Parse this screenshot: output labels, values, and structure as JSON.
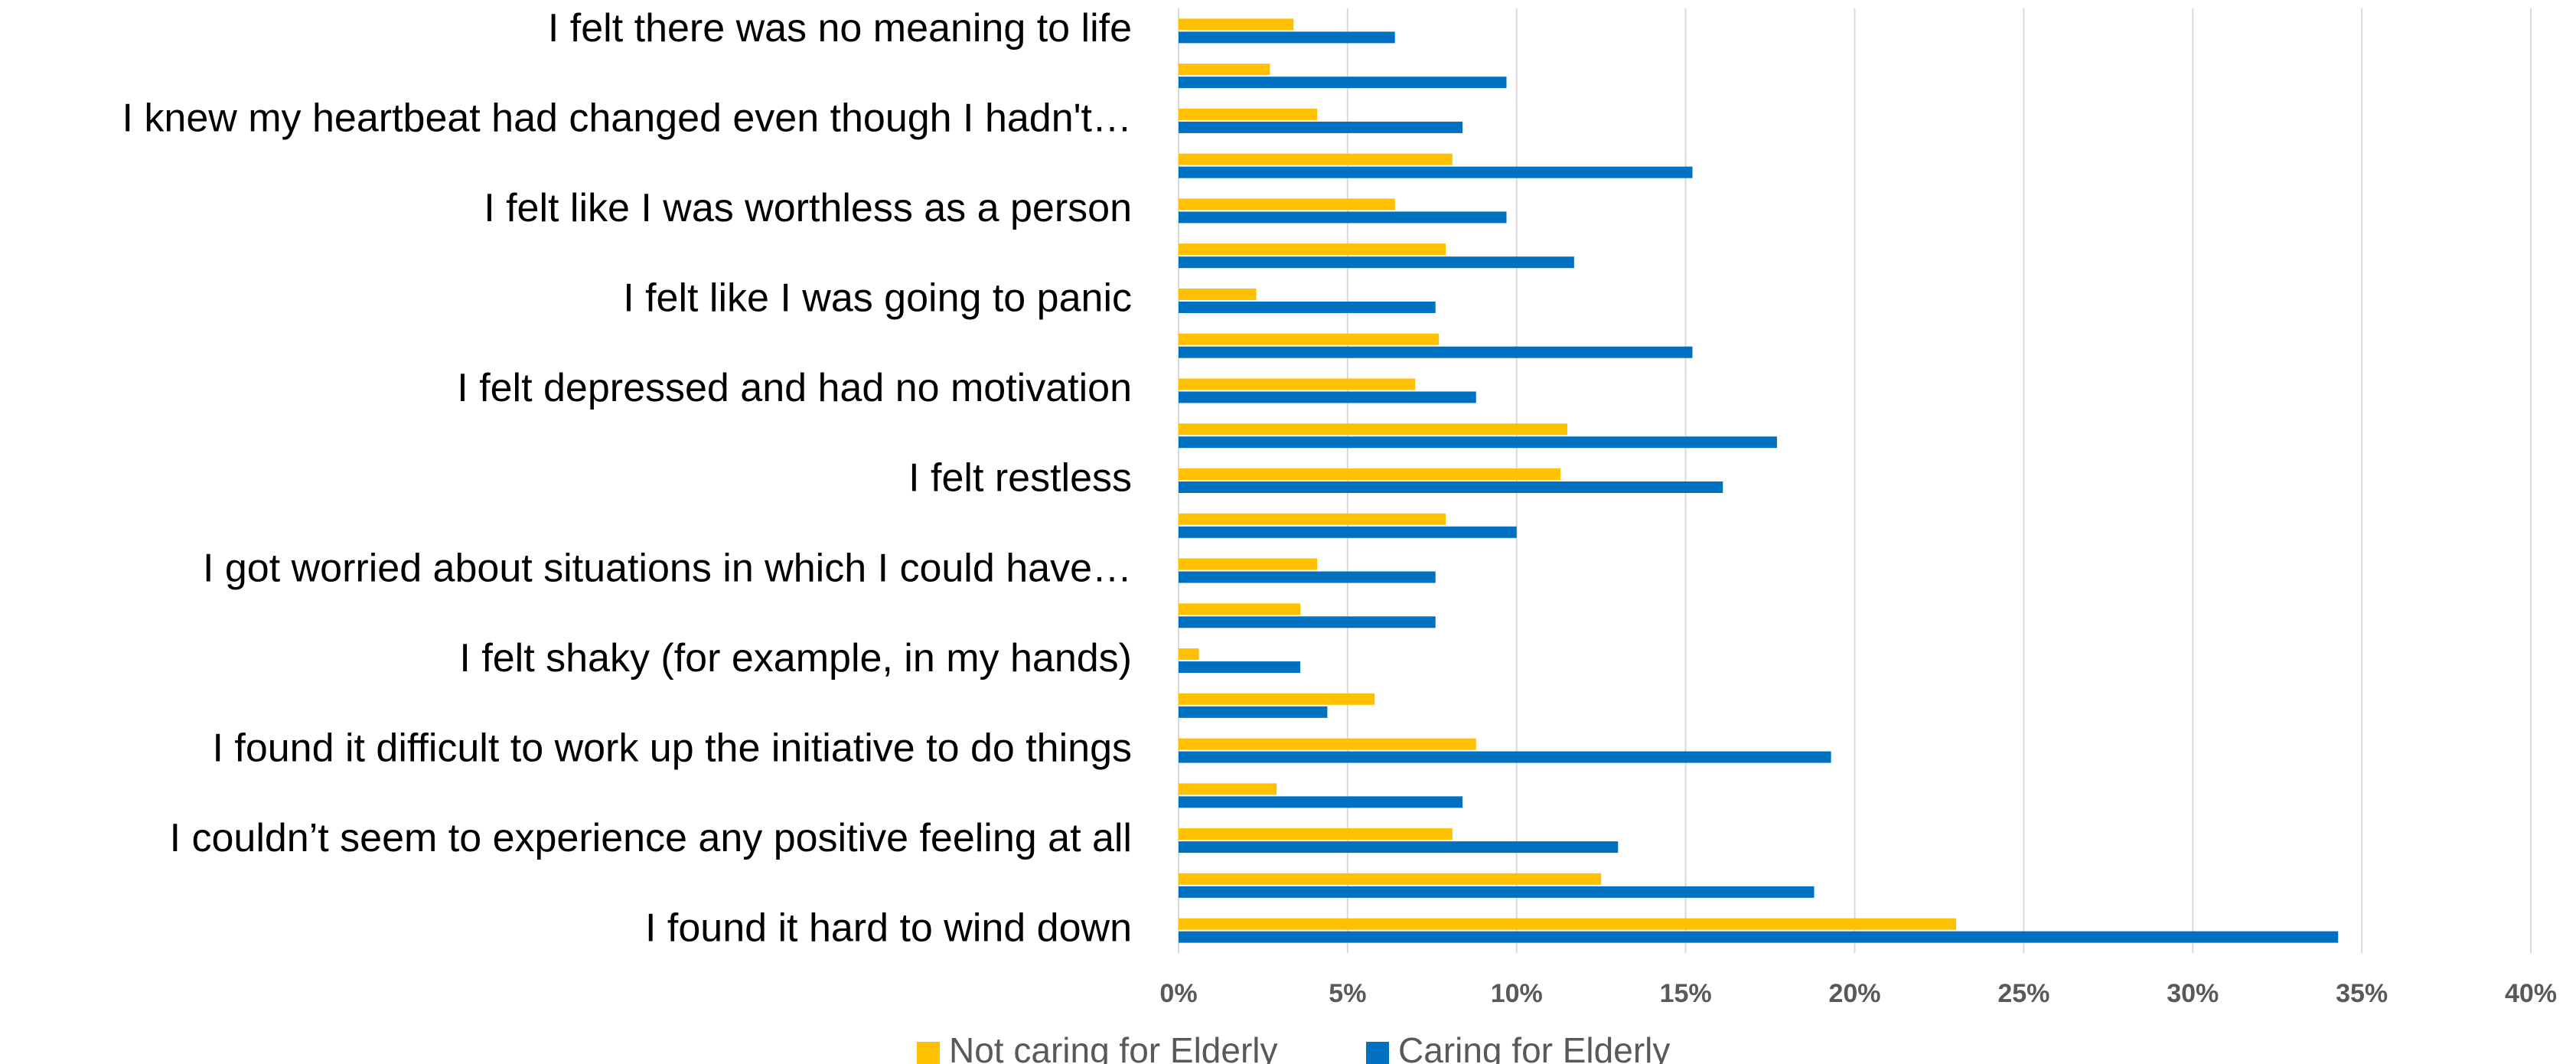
{
  "chart_data": {
    "type": "bar",
    "orientation": "horizontal",
    "categories": [
      "I felt there was no meaning to life",
      null,
      "I knew my heartbeat had changed even though I hadn't…",
      null,
      "I felt like I was worthless as a person",
      null,
      "I felt like I was going to panic",
      null,
      "I felt depressed and had no motivation",
      null,
      "I felt restless",
      null,
      "I got worried about situations in which I could have…",
      null,
      "I felt shaky (for example, in my hands)",
      null,
      "I found it difficult to work up the initiative to do things",
      null,
      "I couldn’t seem to experience any positive feeling at all",
      null,
      "I found it hard to wind down"
    ],
    "series": [
      {
        "name": "Not caring for Elderly",
        "color": "#FFC000",
        "values": [
          3.4,
          2.7,
          4.1,
          8.1,
          6.4,
          7.9,
          2.3,
          7.7,
          7.0,
          11.5,
          11.3,
          7.9,
          4.1,
          3.6,
          0.6,
          5.8,
          8.8,
          2.9,
          8.1,
          12.5,
          23.0
        ]
      },
      {
        "name": "Caring for Elderly",
        "color": "#0070C0",
        "values": [
          6.4,
          9.7,
          8.4,
          15.2,
          9.7,
          11.7,
          7.6,
          15.2,
          8.8,
          17.7,
          16.1,
          10.0,
          7.6,
          7.6,
          3.6,
          4.4,
          19.3,
          8.4,
          13.0,
          18.8,
          34.3
        ]
      }
    ],
    "xlim": [
      0,
      40
    ],
    "xticks": [
      {
        "value": 0,
        "label": "0%"
      },
      {
        "value": 5,
        "label": "5%"
      },
      {
        "value": 10,
        "label": "10%"
      },
      {
        "value": 15,
        "label": "15%"
      },
      {
        "value": 20,
        "label": "20%"
      },
      {
        "value": 25,
        "label": "25%"
      },
      {
        "value": 30,
        "label": "30%"
      },
      {
        "value": 35,
        "label": "35%"
      },
      {
        "value": 40,
        "label": "40%"
      }
    ],
    "grid": true,
    "legend": "bottom"
  }
}
